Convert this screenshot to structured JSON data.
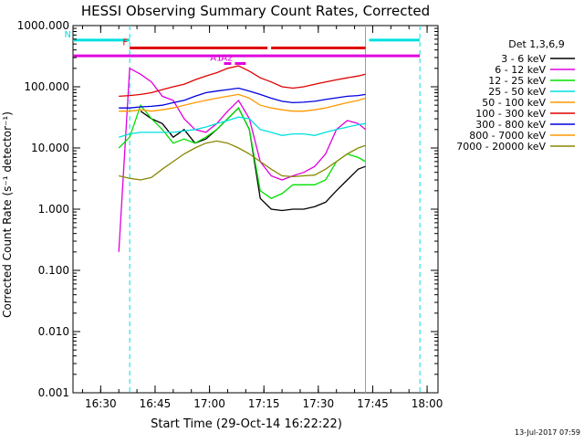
{
  "chart_data": {
    "type": "line",
    "title": "HESSI Observing Summary Count Rates, Corrected",
    "xlabel": "Start Time (29-Oct-14 16:22:22)",
    "ylabel": "Corrected Count Rate (s⁻¹ detector⁻¹)",
    "yscale": "log",
    "ylim": [
      0.001,
      1000
    ],
    "xlim": [
      "16:22:22",
      "18:03:00"
    ],
    "y_ticks": [
      "1000.000",
      "100.000",
      "10.000",
      "1.000",
      "0.100",
      "0.010",
      "0.001"
    ],
    "x_ticks": [
      "16:30",
      "16:45",
      "17:00",
      "17:15",
      "17:30",
      "17:45",
      "18:00"
    ],
    "legend_title": "Det 1,3,6,9",
    "legend_position": "right",
    "footer": "13-Jul-2017 07:59",
    "flags": [
      {
        "label": "N",
        "color": "#00e0e0",
        "segments": [
          [
            "16:22",
            "16:38"
          ],
          [
            "17:44",
            "17:58"
          ]
        ],
        "level": 580
      },
      {
        "label": "F",
        "color": "#e00000",
        "segments": [
          [
            "16:38",
            "17:16"
          ],
          [
            "17:17",
            "17:43"
          ]
        ],
        "level": 430
      },
      {
        "label": "",
        "color": "#e000e0",
        "segments": [
          [
            "16:22",
            "17:58"
          ]
        ],
        "level": 320
      },
      {
        "label": "A1",
        "color": "#e000e0",
        "segments": [
          [
            "17:04",
            "17:06"
          ]
        ],
        "level": 240
      },
      {
        "label": "A2",
        "color": "#e000e0",
        "segments": [
          [
            "17:07",
            "17:10"
          ]
        ],
        "level": 240
      }
    ],
    "vlines": [
      {
        "time": "16:38",
        "color": "#00e0e0",
        "style": "dashed"
      },
      {
        "time": "17:43",
        "color": "#00e0e0",
        "style": "solid"
      },
      {
        "time": "17:58",
        "color": "#00e0e0",
        "style": "dashed"
      }
    ],
    "x": [
      "16:35",
      "16:38",
      "16:41",
      "16:44",
      "16:47",
      "16:50",
      "16:53",
      "16:56",
      "16:59",
      "17:02",
      "17:05",
      "17:08",
      "17:11",
      "17:14",
      "17:17",
      "17:20",
      "17:23",
      "17:26",
      "17:29",
      "17:32",
      "17:35",
      "17:38",
      "17:41",
      "17:43"
    ],
    "series": [
      {
        "name": "3 - 6 keV",
        "color": "#000000",
        "values": [
          null,
          null,
          40,
          30,
          25,
          15,
          20,
          12,
          14,
          20,
          30,
          45,
          20,
          1.5,
          1.0,
          0.95,
          1.0,
          1.0,
          1.1,
          1.3,
          2.0,
          3.0,
          4.5,
          5.0
        ]
      },
      {
        "name": "6 - 12 keV",
        "color": "#e000e0",
        "values": [
          0.2,
          200,
          160,
          120,
          70,
          60,
          30,
          20,
          18,
          25,
          40,
          60,
          30,
          6,
          3.5,
          3.0,
          3.5,
          4.0,
          5.0,
          8.0,
          20,
          28,
          25,
          20
        ]
      },
      {
        "name": "12 - 25 keV",
        "color": "#00e000",
        "values": [
          10,
          15,
          50,
          30,
          20,
          12,
          14,
          12,
          15,
          20,
          30,
          45,
          20,
          2,
          1.5,
          1.8,
          2.5,
          2.5,
          2.5,
          3,
          6,
          8,
          7,
          6
        ]
      },
      {
        "name": "25 - 50 keV",
        "color": "#00e0e0",
        "values": [
          15,
          17,
          18,
          18,
          18,
          18,
          19,
          20,
          22,
          25,
          28,
          32,
          30,
          20,
          18,
          16,
          17,
          17,
          16,
          18,
          20,
          22,
          24,
          25
        ]
      },
      {
        "name": "50 - 100 keV",
        "color": "#ff9900",
        "values": [
          40,
          40,
          42,
          40,
          42,
          45,
          50,
          55,
          60,
          65,
          70,
          75,
          65,
          50,
          45,
          42,
          40,
          40,
          42,
          45,
          50,
          55,
          60,
          65
        ]
      },
      {
        "name": "100 - 300 keV",
        "color": "#e00000",
        "values": [
          70,
          72,
          75,
          80,
          90,
          100,
          110,
          130,
          150,
          170,
          200,
          220,
          180,
          140,
          120,
          100,
          95,
          100,
          110,
          120,
          130,
          140,
          150,
          160
        ]
      },
      {
        "name": "300 - 800 keV",
        "color": "#0000e0",
        "values": [
          45,
          45,
          47,
          48,
          50,
          55,
          60,
          70,
          80,
          85,
          90,
          95,
          85,
          75,
          65,
          58,
          55,
          56,
          58,
          62,
          66,
          70,
          72,
          75
        ]
      },
      {
        "name": "800 - 7000 keV",
        "color": "#ff9900",
        "values": [
          null,
          null,
          null,
          null,
          null,
          null,
          null,
          null,
          null,
          null,
          null,
          null,
          null,
          null,
          null,
          null,
          null,
          null,
          null,
          null,
          null,
          null,
          null,
          null
        ]
      },
      {
        "name": "7000 - 20000 keV",
        "color": "#888800",
        "values": [
          3.5,
          3.2,
          3.0,
          3.3,
          4.5,
          6,
          8,
          10,
          12,
          13,
          12,
          10,
          8,
          6,
          4.5,
          3.5,
          3.4,
          3.5,
          3.6,
          4.5,
          6,
          8,
          10,
          11
        ]
      }
    ]
  }
}
